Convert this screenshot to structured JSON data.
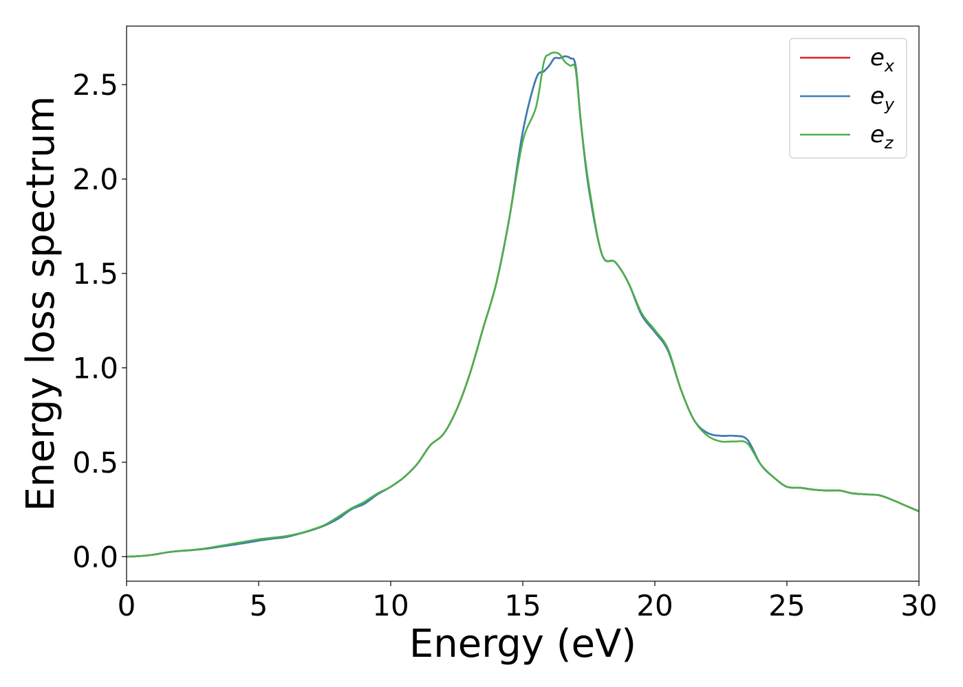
{
  "chart_data": {
    "type": "line",
    "title": "",
    "xlabel": "Energy (eV)",
    "ylabel": "Energy loss spectrum",
    "xlim": [
      0,
      30
    ],
    "ylim": [
      -0.13,
      2.81
    ],
    "grid": false,
    "legend_position": "top-right",
    "xticks": [
      0,
      5,
      10,
      15,
      20,
      25,
      30
    ],
    "xtick_labels": [
      "0",
      "5",
      "10",
      "15",
      "20",
      "25",
      "30"
    ],
    "yticks": [
      0.0,
      0.5,
      1.0,
      1.5,
      2.0,
      2.5
    ],
    "ytick_labels": [
      "0.0",
      "0.5",
      "1.0",
      "1.5",
      "2.0",
      "2.5"
    ],
    "series": [
      {
        "name": "e",
        "subscript": "x",
        "color": "#e41a1c",
        "x": [
          0,
          0.5,
          1,
          1.5,
          2,
          2.5,
          3,
          3.5,
          4,
          4.5,
          5,
          5.5,
          6,
          6.5,
          7,
          7.5,
          8,
          8.5,
          9,
          9.5,
          10,
          10.5,
          11,
          11.5,
          12,
          12.5,
          13,
          13.5,
          14,
          14.5,
          15,
          15.5,
          15.8,
          16,
          16.2,
          16.4,
          16.6,
          16.8,
          17,
          17.2,
          17.5,
          18,
          18.5,
          19,
          19.5,
          20,
          20.5,
          21,
          21.5,
          22,
          22.5,
          23,
          23.5,
          24,
          24.5,
          25,
          25.5,
          26,
          26.5,
          27,
          27.5,
          28,
          28.5,
          29,
          29.5,
          30
        ],
        "y": [
          0.0,
          0.003,
          0.01,
          0.022,
          0.03,
          0.035,
          0.042,
          0.052,
          0.062,
          0.073,
          0.085,
          0.095,
          0.103,
          0.12,
          0.14,
          0.165,
          0.2,
          0.25,
          0.28,
          0.33,
          0.37,
          0.42,
          0.49,
          0.59,
          0.65,
          0.78,
          0.97,
          1.21,
          1.45,
          1.8,
          2.25,
          2.53,
          2.57,
          2.6,
          2.64,
          2.64,
          2.65,
          2.64,
          2.6,
          2.3,
          1.95,
          1.6,
          1.56,
          1.45,
          1.28,
          1.19,
          1.09,
          0.88,
          0.72,
          0.655,
          0.64,
          0.64,
          0.62,
          0.49,
          0.42,
          0.37,
          0.365,
          0.355,
          0.35,
          0.35,
          0.335,
          0.33,
          0.325,
          0.3,
          0.27,
          0.24
        ]
      },
      {
        "name": "e",
        "subscript": "y",
        "color": "#377eb8",
        "x": [
          0,
          0.5,
          1,
          1.5,
          2,
          2.5,
          3,
          3.5,
          4,
          4.5,
          5,
          5.5,
          6,
          6.5,
          7,
          7.5,
          8,
          8.5,
          9,
          9.5,
          10,
          10.5,
          11,
          11.5,
          12,
          12.5,
          13,
          13.5,
          14,
          14.5,
          15,
          15.5,
          15.8,
          16,
          16.2,
          16.4,
          16.6,
          16.8,
          17,
          17.2,
          17.5,
          18,
          18.5,
          19,
          19.5,
          20,
          20.5,
          21,
          21.5,
          22,
          22.5,
          23,
          23.5,
          24,
          24.5,
          25,
          25.5,
          26,
          26.5,
          27,
          27.5,
          28,
          28.5,
          29,
          29.5,
          30
        ],
        "y": [
          0.0,
          0.003,
          0.01,
          0.022,
          0.03,
          0.035,
          0.042,
          0.052,
          0.062,
          0.073,
          0.085,
          0.095,
          0.103,
          0.12,
          0.14,
          0.165,
          0.2,
          0.25,
          0.28,
          0.33,
          0.37,
          0.42,
          0.49,
          0.59,
          0.65,
          0.78,
          0.97,
          1.21,
          1.45,
          1.8,
          2.25,
          2.53,
          2.57,
          2.6,
          2.64,
          2.64,
          2.65,
          2.64,
          2.6,
          2.3,
          1.95,
          1.6,
          1.56,
          1.45,
          1.28,
          1.19,
          1.09,
          0.88,
          0.72,
          0.655,
          0.64,
          0.64,
          0.62,
          0.49,
          0.42,
          0.37,
          0.365,
          0.355,
          0.35,
          0.35,
          0.335,
          0.33,
          0.325,
          0.3,
          0.27,
          0.24
        ]
      },
      {
        "name": "e",
        "subscript": "z",
        "color": "#4daf4a",
        "x": [
          0,
          0.5,
          1,
          1.5,
          2,
          2.5,
          3,
          3.5,
          4,
          4.5,
          5,
          5.5,
          6,
          6.5,
          7,
          7.5,
          8,
          8.5,
          9,
          9.5,
          10,
          10.5,
          11,
          11.5,
          12,
          12.5,
          13,
          13.5,
          14,
          14.5,
          15,
          15.5,
          15.8,
          16,
          16.2,
          16.4,
          16.6,
          16.8,
          17,
          17.2,
          17.5,
          18,
          18.5,
          19,
          19.5,
          20,
          20.5,
          21,
          21.5,
          22,
          22.5,
          23,
          23.5,
          24,
          24.5,
          25,
          25.5,
          26,
          26.5,
          27,
          27.5,
          28,
          28.5,
          29,
          29.5,
          30
        ],
        "y": [
          0.0,
          0.003,
          0.01,
          0.022,
          0.03,
          0.036,
          0.044,
          0.056,
          0.068,
          0.08,
          0.092,
          0.1,
          0.108,
          0.122,
          0.142,
          0.168,
          0.21,
          0.255,
          0.29,
          0.335,
          0.37,
          0.42,
          0.49,
          0.59,
          0.65,
          0.78,
          0.97,
          1.21,
          1.45,
          1.8,
          2.2,
          2.38,
          2.62,
          2.66,
          2.67,
          2.66,
          2.62,
          2.6,
          2.58,
          2.3,
          1.97,
          1.6,
          1.56,
          1.45,
          1.29,
          1.2,
          1.1,
          0.88,
          0.72,
          0.64,
          0.61,
          0.61,
          0.6,
          0.49,
          0.42,
          0.37,
          0.365,
          0.355,
          0.35,
          0.35,
          0.335,
          0.33,
          0.325,
          0.3,
          0.27,
          0.24
        ]
      }
    ]
  }
}
